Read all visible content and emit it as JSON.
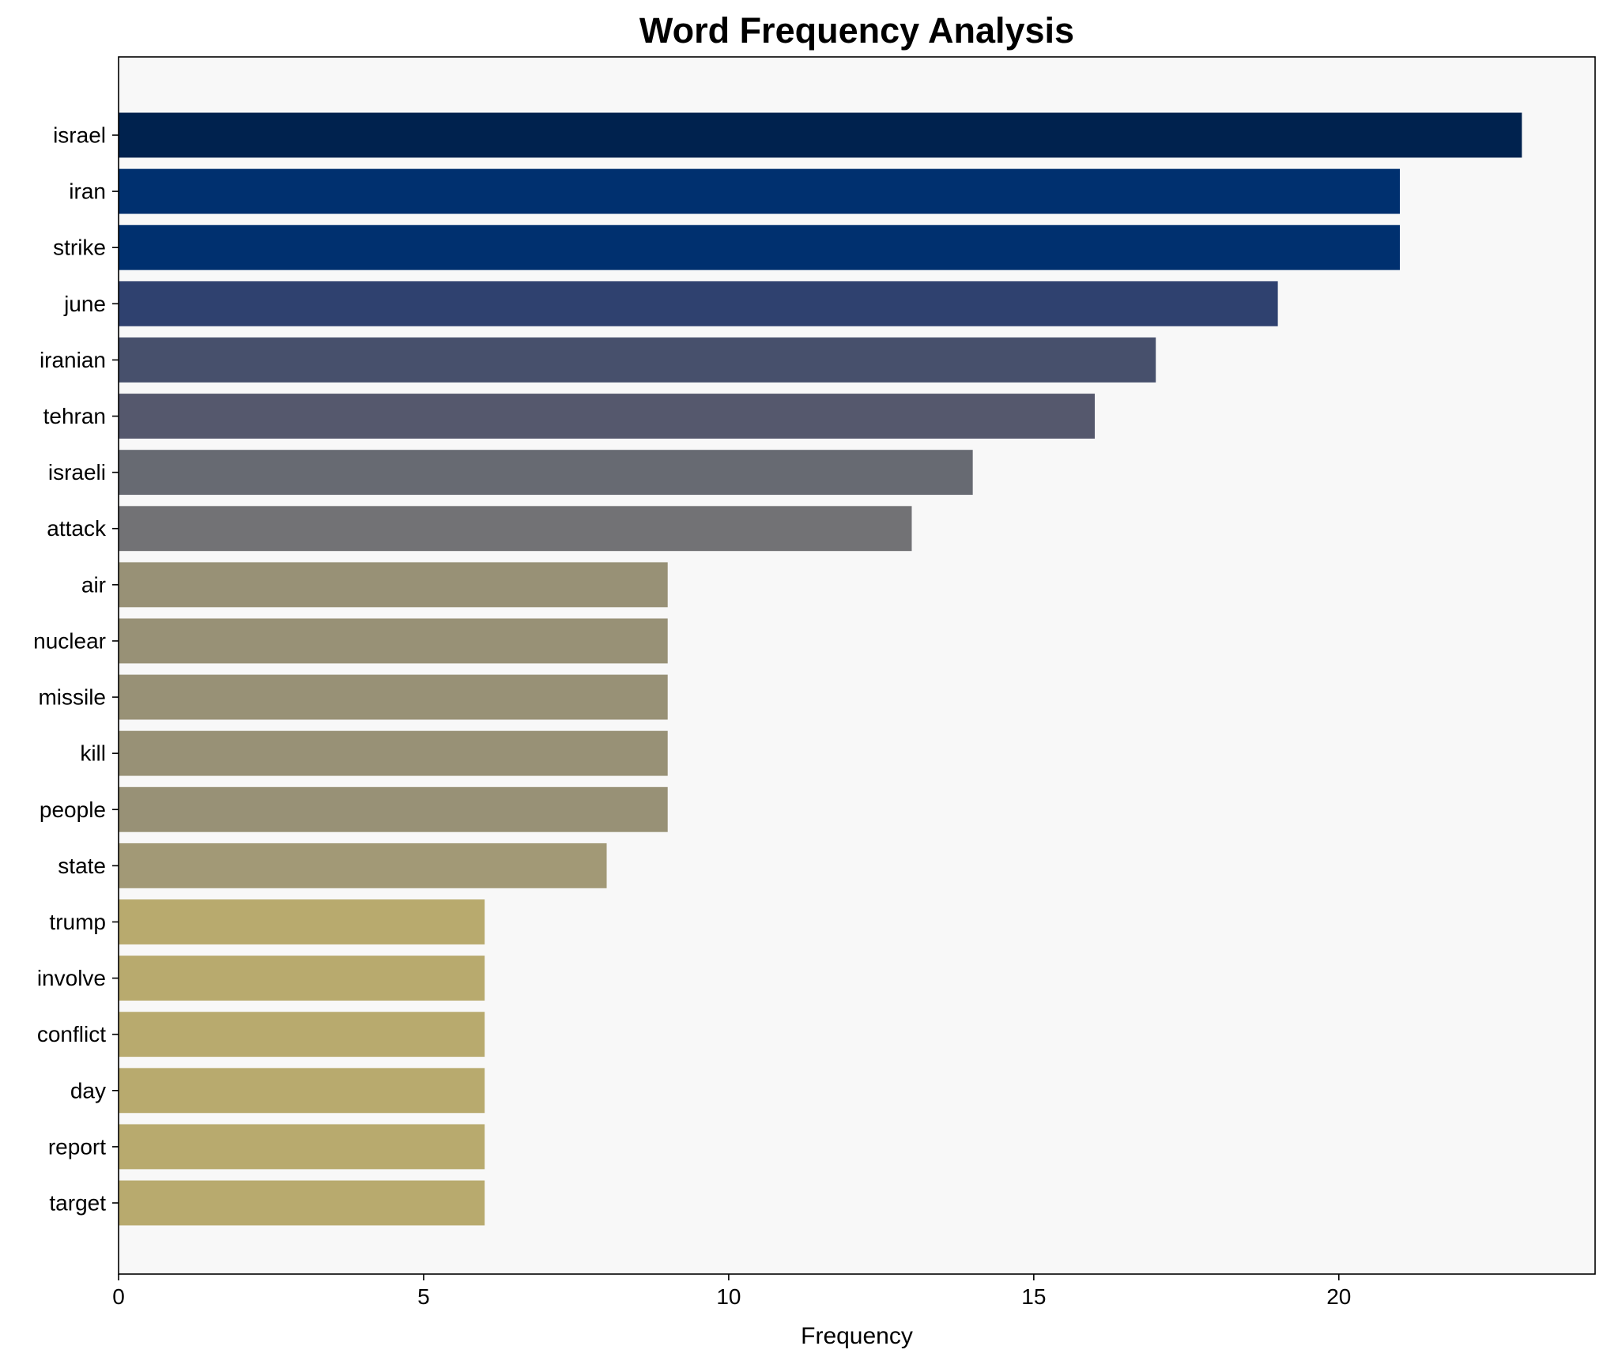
{
  "chart_data": {
    "type": "bar",
    "orientation": "horizontal",
    "title": "Word Frequency Analysis",
    "xlabel": "Frequency",
    "ylabel": "",
    "xlim": [
      0,
      24.2
    ],
    "xticks": [
      0,
      5,
      10,
      15,
      20
    ],
    "grid": false,
    "legend": "none",
    "plot_background": "#f8f8f8",
    "categories": [
      "israel",
      "iran",
      "strike",
      "june",
      "iranian",
      "tehran",
      "israeli",
      "attack",
      "air",
      "nuclear",
      "missile",
      "kill",
      "people",
      "state",
      "trump",
      "involve",
      "conflict",
      "day",
      "report",
      "target"
    ],
    "values": [
      23,
      21,
      21,
      19,
      17,
      16,
      14,
      13,
      9,
      9,
      9,
      9,
      9,
      8,
      6,
      6,
      6,
      6,
      6,
      6
    ],
    "colors": [
      "#00224e",
      "#00306f",
      "#00306f",
      "#2f416f",
      "#47506c",
      "#55586d",
      "#676a72",
      "#727275",
      "#989176",
      "#989176",
      "#989176",
      "#989176",
      "#989176",
      "#a29976",
      "#b8aa6e",
      "#b8aa6e",
      "#b8aa6e",
      "#b8aa6e",
      "#b8aa6e",
      "#b8aa6e"
    ]
  }
}
